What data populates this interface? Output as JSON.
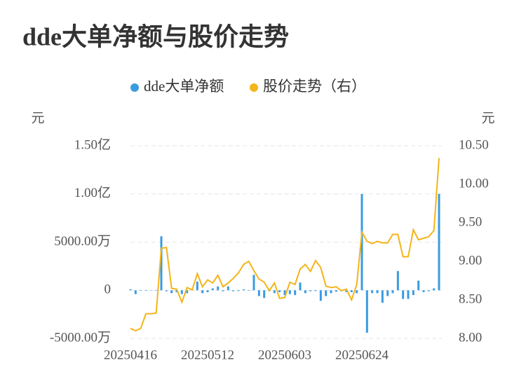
{
  "chart_data": {
    "type": "bar",
    "title": "dde大单净额与股价走势",
    "y_label": "元",
    "y2_label": "元",
    "categories": [
      "20250416",
      null,
      null,
      null,
      null,
      null,
      null,
      null,
      null,
      null,
      null,
      null,
      null,
      null,
      null,
      "20250512",
      null,
      null,
      null,
      null,
      null,
      null,
      null,
      null,
      null,
      null,
      null,
      null,
      null,
      null,
      "20250603",
      null,
      null,
      null,
      null,
      null,
      null,
      null,
      null,
      null,
      null,
      null,
      null,
      null,
      null,
      "20250624",
      null,
      null,
      null,
      null,
      null,
      null,
      null,
      null,
      null,
      null,
      null,
      null,
      null,
      null,
      null
    ],
    "series": [
      {
        "name": "dde大单净额",
        "type": "bar",
        "axis": "y",
        "color": "#3a9be0",
        "values": [
          100,
          -400,
          -50,
          -50,
          -30,
          -40,
          5600,
          -100,
          -300,
          -200,
          -400,
          -300,
          100,
          900,
          -300,
          -200,
          200,
          400,
          -100,
          400,
          -100,
          -80,
          100,
          -50,
          1600,
          -600,
          -800,
          -100,
          -300,
          -200,
          -500,
          -400,
          -500,
          800,
          -300,
          -100,
          -80,
          -1100,
          -600,
          -300,
          -150,
          -100,
          -200,
          -200,
          -300,
          10000,
          -4400,
          -300,
          -300,
          -1300,
          -600,
          -300,
          2000,
          -900,
          -900,
          -500,
          1000,
          -200,
          -100,
          200,
          10000
        ]
      },
      {
        "name": "股价走势（右）",
        "type": "line",
        "axis": "y2",
        "color": "#f4b41a",
        "values": [
          8.13,
          8.1,
          8.13,
          8.32,
          8.32,
          8.33,
          9.17,
          9.18,
          8.65,
          8.64,
          8.47,
          8.66,
          8.63,
          8.84,
          8.67,
          8.76,
          8.72,
          8.82,
          8.67,
          8.72,
          8.78,
          8.85,
          8.96,
          9.0,
          8.88,
          8.77,
          8.73,
          8.62,
          8.72,
          8.52,
          8.53,
          8.73,
          8.7,
          8.9,
          8.96,
          8.87,
          9.01,
          8.92,
          8.68,
          8.66,
          8.67,
          8.62,
          8.64,
          8.5,
          8.7,
          9.38,
          9.26,
          9.23,
          9.26,
          9.24,
          9.24,
          9.35,
          9.35,
          9.06,
          9.06,
          9.41,
          9.28,
          9.3,
          9.32,
          9.4,
          10.34
        ]
      }
    ],
    "ylim": [
      -5000,
      15000
    ],
    "yticks": [
      {
        "value": -5000,
        "label": "-5000.00万"
      },
      0,
      {
        "value": 5000,
        "label": "5000.00万"
      },
      {
        "value": 10000,
        "label": "1.00亿"
      },
      {
        "value": 15000,
        "label": "1.50亿"
      }
    ],
    "y2lim": [
      8,
      10.5
    ],
    "y2ticks": [
      {
        "value": 8,
        "label": "8.00"
      },
      {
        "value": 8.5,
        "label": "8.50"
      },
      {
        "value": 9,
        "label": "9.00"
      },
      {
        "value": 9.5,
        "label": "9.50"
      },
      {
        "value": 10,
        "label": "10.00"
      },
      {
        "value": 10.5,
        "label": "10.50"
      }
    ],
    "grid": true,
    "legend": "top"
  }
}
